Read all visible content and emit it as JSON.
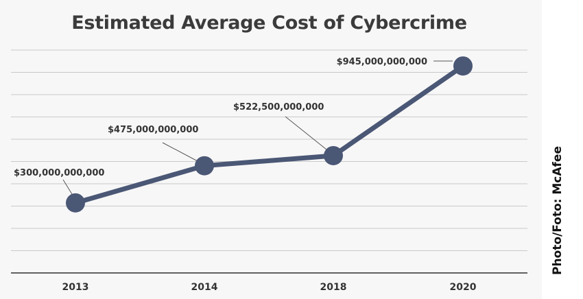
{
  "chart_data": {
    "type": "line",
    "title": "Estimated Average Cost of Cybercrime",
    "xlabel": "",
    "ylabel": "",
    "categories": [
      "2013",
      "2014",
      "2018",
      "2020"
    ],
    "series": [
      {
        "values": [
          300000000000,
          475000000000,
          522500000000,
          945000000000
        ],
        "labels": [
          "$300,000,000,000",
          "$475,000,000,000",
          "$522,500,000,000",
          "$945,000,000,000"
        ],
        "color": "#4a5775"
      }
    ],
    "ylim": [
      -30000000000,
      1020000000000
    ],
    "grid": true,
    "legend": "none"
  },
  "credit": "Photo/Foto: McAfee"
}
